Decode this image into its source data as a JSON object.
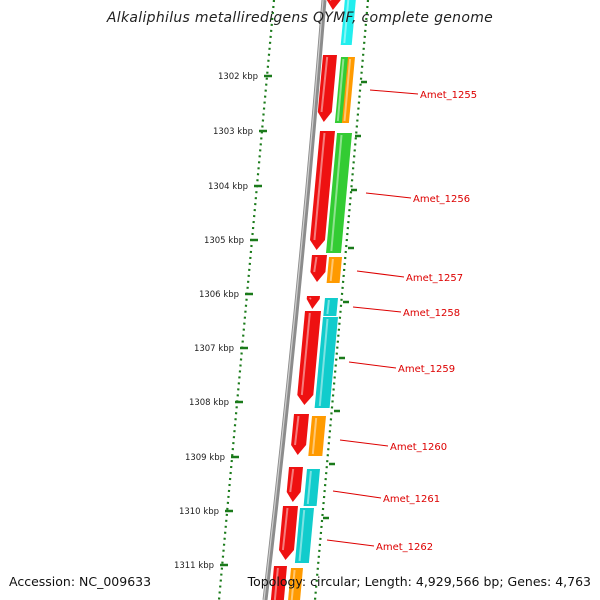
{
  "title": "Alkaliphilus metalliredigens QYMF, complete genome",
  "footer": {
    "accession": "Accession: NC_009633",
    "summary": "Topology: circular; Length: 4,929,566 bp; Genes: 4,763"
  },
  "colors": {
    "backbone": "#8c8c8c",
    "ticks": "#1a7a1a",
    "label": "#dd0000",
    "gene_red": "#ee1111",
    "gene_green": "#33cc33",
    "gene_orange": "#ff9a00",
    "gene_cyan": "#11cccc",
    "gene_cyan_light": "#22eeee"
  },
  "axis_labels": [
    "1302 kbp",
    "1303 kbp",
    "1304 kbp",
    "1305 kbp",
    "1306 kbp",
    "1307 kbp",
    "1308 kbp",
    "1309 kbp",
    "1310 kbp",
    "1311 kbp"
  ],
  "gene_labels": [
    "Amet_1255",
    "Amet_1256",
    "Amet_1257",
    "Amet_1258",
    "Amet_1259",
    "Amet_1260",
    "Amet_1261",
    "Amet_1262"
  ]
}
